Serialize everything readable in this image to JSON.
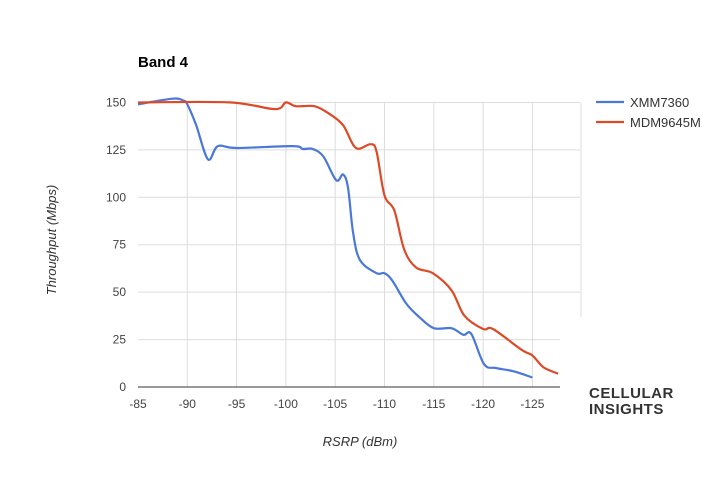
{
  "chart_data": {
    "type": "line",
    "title": "Band 4",
    "xlabel": "RSRP (dBm)",
    "ylabel": "Throughput (Mbps)",
    "xlim": [
      -85,
      -127.8
    ],
    "ylim": [
      0,
      150
    ],
    "xticks": [
      -85,
      -90,
      -95,
      -100,
      -105,
      -110,
      -115,
      -120,
      -125
    ],
    "yticks": [
      0,
      25,
      50,
      75,
      100,
      125,
      150
    ],
    "grid": true,
    "legend_position": "right",
    "series": [
      {
        "name": "XMM7360",
        "color": "#4a78d8",
        "points": [
          [
            -85,
            149
          ],
          [
            -88.5,
            152
          ],
          [
            -89.6,
            151
          ],
          [
            -90,
            149
          ],
          [
            -90.9,
            138
          ],
          [
            -92.1,
            120
          ],
          [
            -93.1,
            127
          ],
          [
            -95,
            126
          ],
          [
            -100.7,
            127
          ],
          [
            -101.7,
            125.5
          ],
          [
            -102.7,
            125.5
          ],
          [
            -103.8,
            121.5
          ],
          [
            -105.1,
            109
          ],
          [
            -105.8,
            112
          ],
          [
            -106.3,
            105
          ],
          [
            -106.8,
            82
          ],
          [
            -107.5,
            67
          ],
          [
            -109.2,
            60
          ],
          [
            -110,
            60
          ],
          [
            -110.8,
            56
          ],
          [
            -112.2,
            44
          ],
          [
            -113.5,
            37
          ],
          [
            -115,
            31
          ],
          [
            -116.8,
            31
          ],
          [
            -118,
            27.5
          ],
          [
            -118.8,
            28
          ],
          [
            -120.1,
            12
          ],
          [
            -121.3,
            10
          ],
          [
            -123,
            8.4
          ],
          [
            -125,
            5
          ]
        ]
      },
      {
        "name": "MDM9645M",
        "color": "#dc4a26",
        "points": [
          [
            -85,
            150
          ],
          [
            -94.3,
            150
          ],
          [
            -98.9,
            146.5
          ],
          [
            -100,
            150
          ],
          [
            -101,
            148
          ],
          [
            -102.9,
            148
          ],
          [
            -104.4,
            144
          ],
          [
            -105.8,
            138
          ],
          [
            -107.1,
            126
          ],
          [
            -108.6,
            128
          ],
          [
            -109.2,
            124
          ],
          [
            -110,
            101
          ],
          [
            -111,
            93
          ],
          [
            -112,
            72.5
          ],
          [
            -113.2,
            63
          ],
          [
            -114.9,
            60
          ],
          [
            -116.8,
            51
          ],
          [
            -118.1,
            37.6
          ],
          [
            -120,
            30.6
          ],
          [
            -121,
            30.6
          ],
          [
            -123.9,
            19.6
          ],
          [
            -125,
            16.6
          ],
          [
            -126.1,
            10.5
          ],
          [
            -127.6,
            7
          ]
        ]
      }
    ]
  },
  "logo": {
    "line1": "CELLULAR",
    "line2": "INSIGHTS"
  }
}
